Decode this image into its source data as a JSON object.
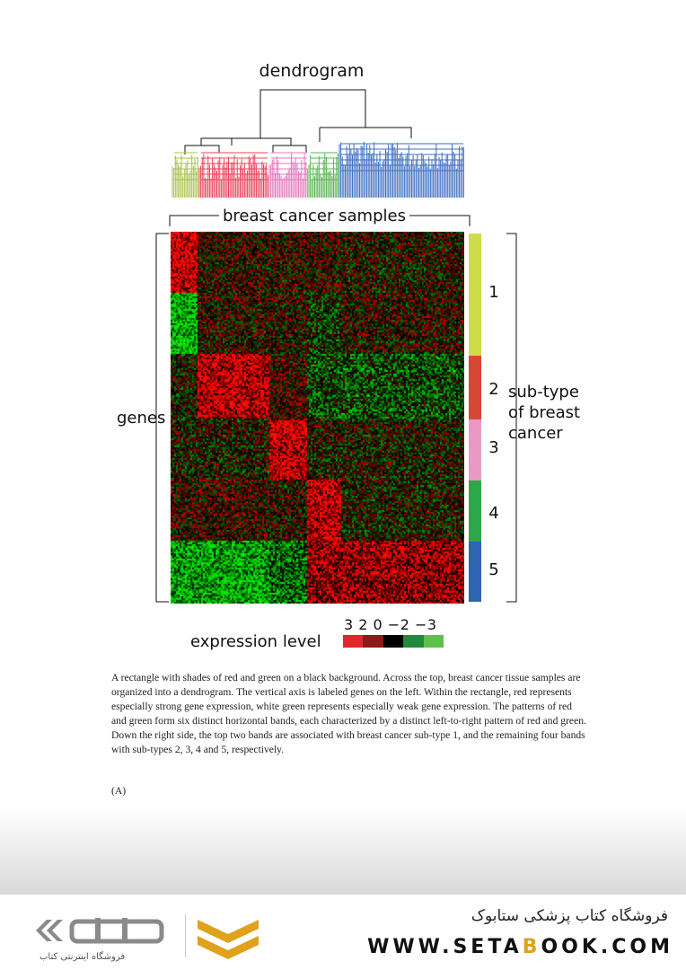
{
  "figure": {
    "dendrogram_title": "dendrogram",
    "samples_label": "breast cancer samples",
    "genes_label": "genes",
    "subtype_label_lines": [
      "sub-type",
      "of breast",
      "cancer"
    ],
    "subtypes": [
      {
        "label": "1",
        "color": "#cfdc4a"
      },
      {
        "label": "2",
        "color": "#d84636"
      },
      {
        "label": "3",
        "color": "#e89ac4"
      },
      {
        "label": "4",
        "color": "#2aa84a"
      },
      {
        "label": "5",
        "color": "#2f64b2"
      }
    ],
    "dendrogram_cluster_colors": [
      "#a9c249",
      "#e8435a",
      "#e478bd",
      "#58b552",
      "#3e6fc2"
    ],
    "legend": {
      "label": "expression level",
      "values_text": "3  2  0 −2 −3",
      "colors": [
        "#e3262b",
        "#8c1a1a",
        "#000000",
        "#1f8a3c",
        "#5ec24a"
      ]
    }
  },
  "caption": "A rectangle with shades of red and green on a black background. Across the top, breast cancer tissue samples are organized into a dendrogram. The vertical axis is labeled genes on the left. Within the rectangle, red represents especially strong gene expression, white green represents especially weak gene expression. The patterns of red and green form six distinct horizontal bands, each characterized by a distinct left-to-right pattern of red and green. Down the right side, the top two bands are associated with breast cancer sub-type 1, and the remaining four bands with sub-types 2, 3, 4 and 5, respectively.",
  "figure_letter": "(A)",
  "footer": {
    "store_name": "فروشگاه کتاب پزشکی ستابوک",
    "url_before": "WWW.SETA",
    "url_accent": "B",
    "url_after": "OOK.COM",
    "logo_subtitle": "فروشگاه اینترنتی کتاب",
    "accent_color": "#e0a21c"
  }
}
